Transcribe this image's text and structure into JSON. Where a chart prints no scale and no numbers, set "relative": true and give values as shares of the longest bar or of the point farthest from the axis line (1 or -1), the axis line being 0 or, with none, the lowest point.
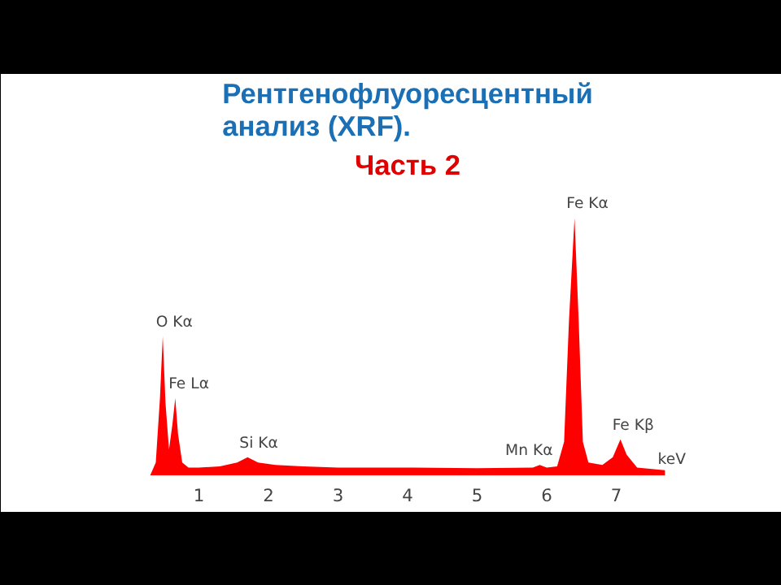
{
  "chart_data": {
    "type": "area",
    "title": "Рентгенофлуоресцентный анализ (XRF).",
    "subtitle": "Часть 2",
    "xlabel": "keV",
    "relative": true,
    "color": "#ff0000",
    "x": [
      0.3,
      0.38,
      0.44,
      0.48,
      0.52,
      0.57,
      0.62,
      0.66,
      0.7,
      0.76,
      0.85,
      1.0,
      1.3,
      1.55,
      1.7,
      1.85,
      2.1,
      2.5,
      3.0,
      4.0,
      5.0,
      5.8,
      5.9,
      6.0,
      6.15,
      6.25,
      6.32,
      6.4,
      6.46,
      6.52,
      6.6,
      6.8,
      6.95,
      7.06,
      7.15,
      7.3,
      7.7
    ],
    "values": [
      0.0,
      0.05,
      0.3,
      0.54,
      0.28,
      0.1,
      0.2,
      0.3,
      0.16,
      0.05,
      0.03,
      0.03,
      0.035,
      0.05,
      0.07,
      0.05,
      0.04,
      0.035,
      0.03,
      0.03,
      0.028,
      0.03,
      0.04,
      0.03,
      0.035,
      0.13,
      0.6,
      1.0,
      0.6,
      0.13,
      0.05,
      0.04,
      0.07,
      0.14,
      0.08,
      0.03,
      0.02
    ],
    "xlim": [
      0,
      8
    ],
    "xticks": [
      1,
      2,
      3,
      4,
      5,
      6,
      7
    ],
    "grid": false,
    "annotations": [
      {
        "text": "O Kα",
        "x": 0.5,
        "y": 0.54
      },
      {
        "text": "Fe Lα",
        "x": 0.68,
        "y": 0.3
      },
      {
        "text": "Si Kα",
        "x": 1.7,
        "y": 0.07
      },
      {
        "text": "Fe Kα",
        "x": 6.4,
        "y": 1.0
      },
      {
        "text": "Mn Kα",
        "x": 5.9,
        "y": 0.04
      },
      {
        "text": "Fe Kβ",
        "x": 7.06,
        "y": 0.14
      }
    ]
  }
}
